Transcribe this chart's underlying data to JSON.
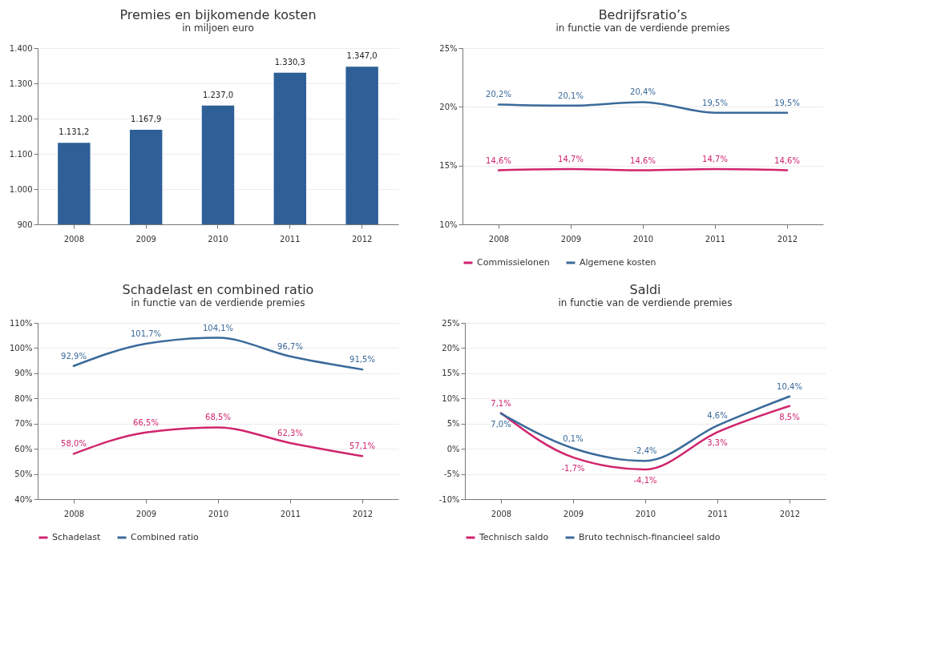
{
  "chart_data": [
    {
      "type": "bar",
      "title": "Premies en bijkomende kosten",
      "subtitle": "in miljoen euro",
      "categories": [
        "2008",
        "2009",
        "2010",
        "2011",
        "2012"
      ],
      "values": [
        1131.2,
        1167.9,
        1237.0,
        1330.3,
        1347.0
      ],
      "value_labels": [
        "1.131,2",
        "1.167,9",
        "1.237,0",
        "1.330,3",
        "1.347,0"
      ],
      "color": "#2e5f96",
      "ylim": [
        900,
        1400
      ],
      "yticks": [
        {
          "value": 900,
          "label": "900"
        },
        {
          "value": 1000,
          "label": "1.000"
        },
        {
          "value": 1100,
          "label": "1.100"
        },
        {
          "value": 1200,
          "label": "1.200"
        },
        {
          "value": 1300,
          "label": "1.300"
        },
        {
          "value": 1400,
          "label": "1.400"
        }
      ],
      "grid": "y"
    },
    {
      "type": "line",
      "title": "Bedrijfsratio’s",
      "subtitle": "in functie van de verdiende premies",
      "categories": [
        "2008",
        "2009",
        "2010",
        "2011",
        "2012"
      ],
      "series": [
        {
          "name": "Commissielonen",
          "color": "#d0246e",
          "values": [
            14.6,
            14.7,
            14.6,
            14.7,
            14.6
          ],
          "value_labels": [
            "14,6%",
            "14,7%",
            "14,6%",
            "14,7%",
            "14,6%"
          ]
        },
        {
          "name": "Algemene kosten",
          "color": "#3a6a9a",
          "values": [
            20.2,
            20.1,
            20.4,
            19.5,
            19.5
          ],
          "value_labels": [
            "20,2%",
            "20,1%",
            "20,4%",
            "19,5%",
            "19,5%"
          ]
        }
      ],
      "ylim": [
        10,
        25
      ],
      "yticks": [
        {
          "value": 10,
          "label": "10%"
        },
        {
          "value": 15,
          "label": "15%"
        },
        {
          "value": 20,
          "label": "20%"
        },
        {
          "value": 25,
          "label": "25%"
        }
      ],
      "grid": "y",
      "legend": "bottom"
    },
    {
      "type": "line",
      "title": "Schadelast en combined ratio",
      "subtitle": "in functie van de verdiende premies",
      "categories": [
        "2008",
        "2009",
        "2010",
        "2011",
        "2012"
      ],
      "series": [
        {
          "name": "Schadelast",
          "color": "#d0246e",
          "values": [
            58.0,
            66.5,
            68.5,
            62.3,
            57.1
          ],
          "value_labels": [
            "58,0%",
            "66,5%",
            "68,5%",
            "62,3%",
            "57,1%"
          ]
        },
        {
          "name": "Combined ratio",
          "color": "#3a6a9a",
          "values": [
            92.9,
            101.7,
            104.1,
            96.7,
            91.5
          ],
          "value_labels": [
            "92,9%",
            "101,7%",
            "104,1%",
            "96,7%",
            "91,5%"
          ]
        }
      ],
      "ylim": [
        40,
        110
      ],
      "yticks": [
        {
          "value": 40,
          "label": "40%"
        },
        {
          "value": 50,
          "label": "50%"
        },
        {
          "value": 60,
          "label": "60%"
        },
        {
          "value": 70,
          "label": "70%"
        },
        {
          "value": 80,
          "label": "80%"
        },
        {
          "value": 90,
          "label": "90%"
        },
        {
          "value": 100,
          "label": "100%"
        },
        {
          "value": 110,
          "label": "110%"
        }
      ],
      "grid": "y",
      "legend": "bottom"
    },
    {
      "type": "line",
      "title": "Saldi",
      "subtitle": "in functie van de verdiende premies",
      "categories": [
        "2008",
        "2009",
        "2010",
        "2011",
        "2012"
      ],
      "series": [
        {
          "name": "Technisch saldo",
          "color": "#d0246e",
          "values": [
            7.1,
            -1.7,
            -4.1,
            3.3,
            8.5
          ],
          "value_labels": [
            "7,1%",
            "-1,7%",
            "-4,1%",
            "3,3%",
            "8,5%"
          ]
        },
        {
          "name": "Bruto technisch-financieel saldo",
          "color": "#3a6a9a",
          "values": [
            7.0,
            0.1,
            -2.4,
            4.6,
            10.4
          ],
          "value_labels": [
            "7,0%",
            "0,1%",
            "-2,4%",
            "4,6%",
            "10,4%"
          ]
        }
      ],
      "ylim": [
        -10,
        25
      ],
      "yticks": [
        {
          "value": -10,
          "label": "-10%"
        },
        {
          "value": -5,
          "label": "-5%"
        },
        {
          "value": 0,
          "label": "0%"
        },
        {
          "value": 5,
          "label": "5%"
        },
        {
          "value": 10,
          "label": "10%"
        },
        {
          "value": 15,
          "label": "15%"
        },
        {
          "value": 20,
          "label": "20%"
        },
        {
          "value": 25,
          "label": "25%"
        }
      ],
      "grid": "y",
      "legend": "bottom"
    }
  ]
}
